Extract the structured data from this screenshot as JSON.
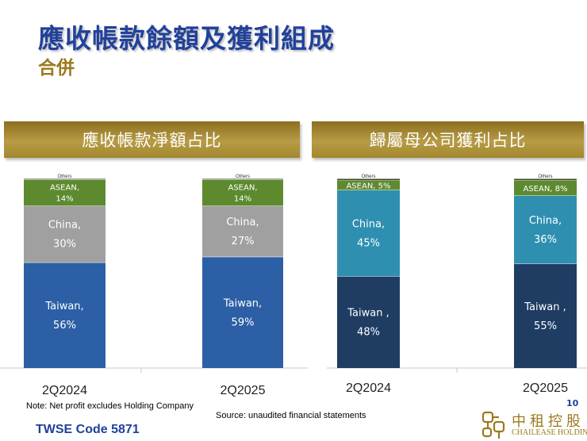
{
  "slide": {
    "title": "應收帳款餘額及獲利組成",
    "subtitle": "合併",
    "page_number": "10",
    "note": "Note: Net profit excludes Holding Company",
    "source": "Source: unaudited financial statements",
    "ticker": "TWSE Code 5871",
    "logo_cn": "中租控股",
    "logo_en": "CHAILEASE HOLDING"
  },
  "colors": {
    "taiwan_left": "#2c5fa6",
    "china_left": "#a0a0a0",
    "taiwan_right": "#1f3c63",
    "china_right": "#2f8fb0",
    "asean": "#5d8a2f",
    "others": "#3a4a22",
    "header_gold": "#a98c34"
  },
  "chart_data": [
    {
      "type": "bar",
      "stacked": true,
      "title": "應收帳款淨額占比",
      "categories": [
        "2Q2024",
        "2Q2025"
      ],
      "series": [
        {
          "name": "Taiwan",
          "values": [
            56,
            59
          ],
          "labels": [
            "Taiwan,",
            "Taiwan,"
          ]
        },
        {
          "name": "China",
          "values": [
            30,
            27
          ],
          "labels": [
            "China,",
            "China,"
          ]
        },
        {
          "name": "ASEAN",
          "values": [
            14,
            14
          ],
          "labels": [
            "ASEAN,",
            "ASEAN,"
          ]
        },
        {
          "name": "Others",
          "values": [
            0.5,
            0.5
          ],
          "labels": [
            "Others",
            "Others"
          ]
        }
      ],
      "unit": "%"
    },
    {
      "type": "bar",
      "stacked": true,
      "title": "歸屬母公司獲利占比",
      "categories": [
        "2Q2024",
        "2Q2025"
      ],
      "series": [
        {
          "name": "Taiwan",
          "values": [
            48,
            55
          ],
          "labels": [
            "Taiwan ,",
            "Taiwan ,"
          ]
        },
        {
          "name": "China",
          "values": [
            45,
            36
          ],
          "labels": [
            "China,",
            "China,"
          ]
        },
        {
          "name": "ASEAN",
          "values": [
            5,
            8
          ],
          "labels": [
            "ASEAN, 5%",
            "ASEAN, 8%"
          ]
        },
        {
          "name": "Others",
          "values": [
            1,
            1
          ],
          "labels": [
            "Others",
            "Others"
          ]
        }
      ],
      "unit": "%"
    }
  ]
}
